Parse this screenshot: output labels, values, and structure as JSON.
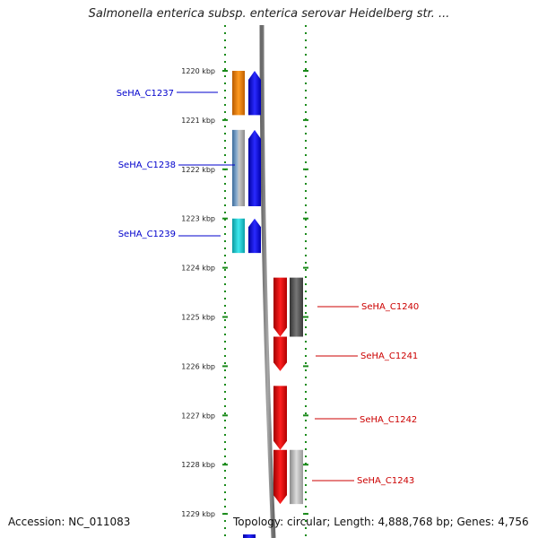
{
  "title": "Salmonella enterica subsp. enterica serovar Heidelberg str. ...",
  "footer": {
    "accession": "Accession: NC_011083",
    "stats": "Topology: circular; Length: 4,888,768 bp; Genes: 4,756"
  },
  "colors": {
    "strand_line": "#1a8a1a",
    "backbone": "#8c8c8c",
    "label_left": "#0000cc",
    "label_right": "#cc0000"
  },
  "scale": {
    "unit": "kbp",
    "ticks": [
      1220,
      1221,
      1222,
      1223,
      1224,
      1225,
      1226,
      1227,
      1228,
      1229
    ],
    "tick_labels": [
      "1220 kbp",
      "1221 kbp",
      "1222 kbp",
      "1223 kbp",
      "1224 kbp",
      "1225 kbp",
      "1226 kbp",
      "1227 kbp",
      "1228 kbp",
      "1229 kbp"
    ]
  },
  "genes": [
    {
      "name": "SeHA_C1237",
      "strand": "reverse",
      "start_kbp": 1220.0,
      "end_kbp": 1220.9,
      "label_color": "#0000cc",
      "feature_colors": [
        "#e07a10",
        "#0000ee"
      ]
    },
    {
      "name": "SeHA_C1238",
      "strand": "reverse",
      "start_kbp": 1221.2,
      "end_kbp": 1222.75,
      "label_color": "#0000cc",
      "feature_colors": [
        "#5a86b5",
        "#0000ee"
      ]
    },
    {
      "name": "SeHA_C1239",
      "strand": "reverse",
      "start_kbp": 1223.0,
      "end_kbp": 1223.7,
      "label_color": "#0000cc",
      "feature_colors": [
        "#1cc4cc",
        "#0000ee"
      ]
    },
    {
      "name": "SeHA_C1240",
      "strand": "forward",
      "start_kbp": 1224.2,
      "end_kbp": 1225.4,
      "label_color": "#cc0000",
      "feature_colors": [
        "#ee0000",
        "#555555"
      ]
    },
    {
      "name": "SeHA_C1241",
      "strand": "forward",
      "start_kbp": 1225.4,
      "end_kbp": 1226.1,
      "label_color": "#cc0000",
      "feature_colors": [
        "#ee0000"
      ]
    },
    {
      "name": "SeHA_C1242",
      "strand": "forward",
      "start_kbp": 1226.4,
      "end_kbp": 1227.7,
      "label_color": "#cc0000",
      "feature_colors": [
        "#ee0000"
      ]
    },
    {
      "name": "SeHA_C1243",
      "strand": "forward",
      "start_kbp": 1227.7,
      "end_kbp": 1228.8,
      "label_color": "#cc0000",
      "feature_colors": [
        "#ee0000",
        "#aaaaaa"
      ]
    }
  ]
}
